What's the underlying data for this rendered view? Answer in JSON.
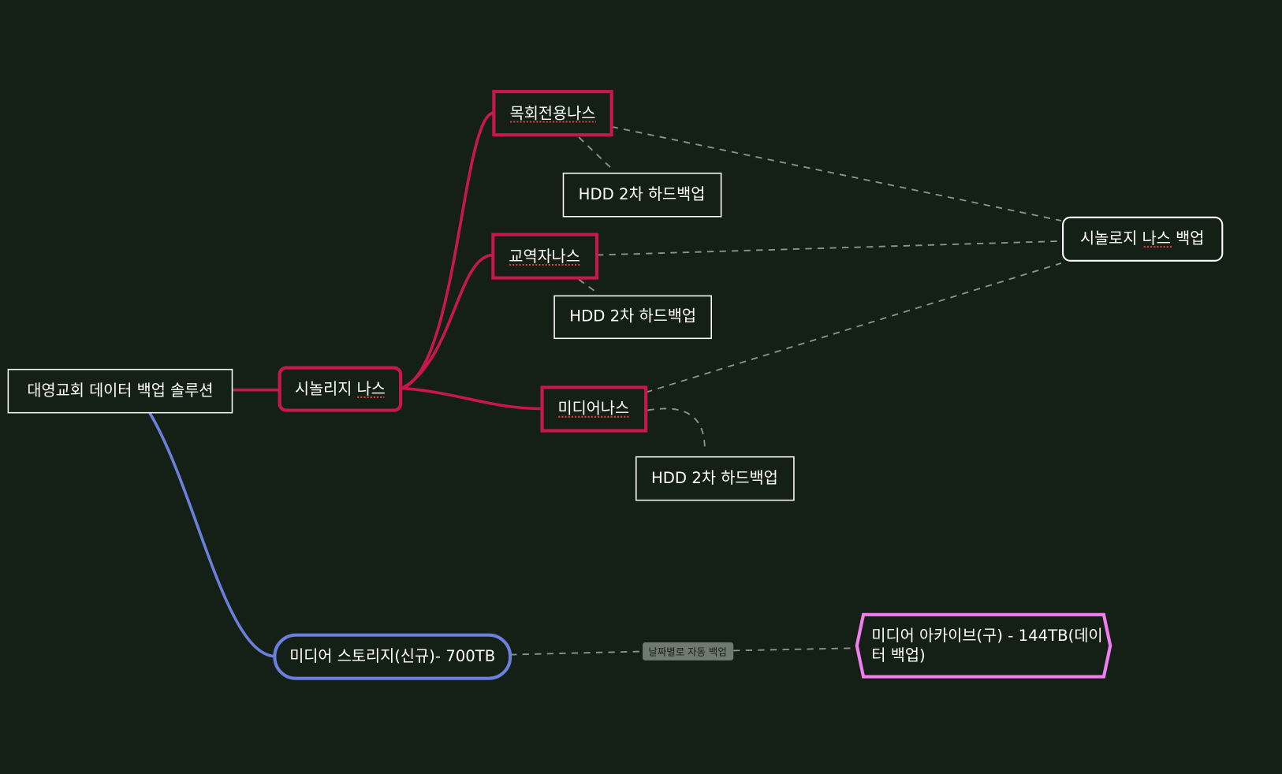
{
  "colors": {
    "background": "#141f15",
    "nas_branch": "#c8174f",
    "storage_branch": "#6b7fdc",
    "archive": "#f07ef0",
    "node_border": "#ffffff",
    "link_label_bg": "#6e7a6d"
  },
  "root": {
    "label": "대영교회 데이터 백업 솔루션"
  },
  "synology": {
    "label": "시놀리지 나스",
    "children": [
      {
        "label": "목회전용나스",
        "backup": "HDD 2차 하드백업"
      },
      {
        "label": "교역자나스",
        "backup": "HDD 2차 하드백업"
      },
      {
        "label": "미디어나스",
        "backup": "HDD 2차 하드백업"
      }
    ]
  },
  "synology_backup": {
    "label": "시놀로지 나스 백업"
  },
  "media_storage": {
    "label": "미디어 스토리지(신규)- 700TB"
  },
  "archive": {
    "line1": "미디어 아카이브(구) - 144TB(데이",
    "line2": "터 백업)"
  },
  "link_label": "날짜별로 자동 백업"
}
